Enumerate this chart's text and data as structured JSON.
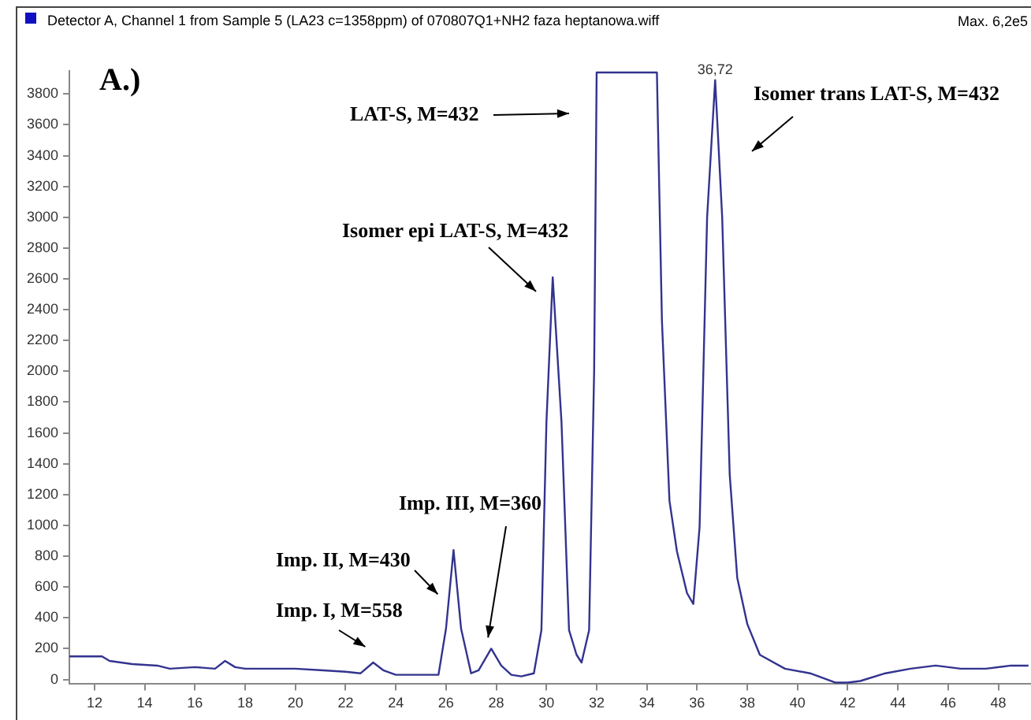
{
  "chart_data": {
    "type": "line",
    "title": "Detector A, Channel 1 from Sample 5 (LA23 c=1358ppm) of 070807Q1+NH2 faza heptanowa.wiff",
    "x": [
      11,
      12.3,
      12.6,
      13.5,
      14.5,
      15,
      16,
      16.8,
      17.2,
      17.6,
      18,
      19,
      20,
      21,
      22,
      22.6,
      23.1,
      23.5,
      24,
      25,
      25.7,
      26,
      26.3,
      26.6,
      27,
      27.3,
      27.8,
      28.2,
      28.6,
      29,
      29.5,
      29.8,
      30,
      30.25,
      30.6,
      30.9,
      31.2,
      31.4,
      31.7,
      31.9,
      32,
      34.4,
      34.6,
      34.9,
      35.2,
      35.6,
      35.85,
      36.1,
      36.4,
      36.72,
      37,
      37.3,
      37.6,
      38,
      38.5,
      39.5,
      40.5,
      41.5,
      42,
      42.5,
      43.5,
      44.5,
      45.5,
      46.5,
      47.5,
      48.5,
      49.2
    ],
    "series": [
      {
        "color": "#33338f",
        "values": [
          150,
          150,
          120,
          100,
          90,
          70,
          80,
          70,
          120,
          80,
          70,
          70,
          70,
          60,
          50,
          40,
          110,
          60,
          30,
          30,
          30,
          330,
          840,
          330,
          40,
          60,
          200,
          90,
          30,
          20,
          40,
          320,
          1670,
          2610,
          1670,
          320,
          160,
          110,
          320,
          2000,
          3940,
          3940,
          2330,
          1160,
          830,
          560,
          490,
          990,
          3000,
          3890,
          3000,
          1330,
          660,
          360,
          160,
          70,
          40,
          -20,
          -20,
          -10,
          40,
          70,
          90,
          70,
          70,
          90,
          90
        ]
      }
    ],
    "xlim": [
      11,
      49.3
    ],
    "ylim": [
      -30,
      3950
    ],
    "xticks": [
      12,
      14,
      16,
      18,
      20,
      22,
      24,
      26,
      28,
      30,
      32,
      34,
      36,
      38,
      40,
      42,
      44,
      46,
      48
    ],
    "yticks": [
      0,
      200,
      400,
      600,
      800,
      1000,
      1200,
      1400,
      1600,
      1800,
      2000,
      2200,
      2400,
      2600,
      2800,
      3000,
      3200,
      3400,
      3600,
      3800
    ],
    "grid": false,
    "legend": false,
    "marker": "none",
    "line_style": "solid",
    "annotations": [
      "A.)",
      "LAT-S, M=432",
      "Isomer epi LAT-S, M=432",
      "Isomer trans LAT-S, M=432",
      {
        "text": "Imp. III, M=360",
        "x": 27.8,
        "y": 200
      },
      {
        "text": "Imp. II, M=430",
        "x": 26.3,
        "y": 840
      },
      {
        "text": "Imp. I, M=558",
        "x": 23.1,
        "y": 110
      },
      {
        "text": "36,72",
        "x": 36.72,
        "y": 3890
      },
      "Max. 6,2e5"
    ]
  }
}
